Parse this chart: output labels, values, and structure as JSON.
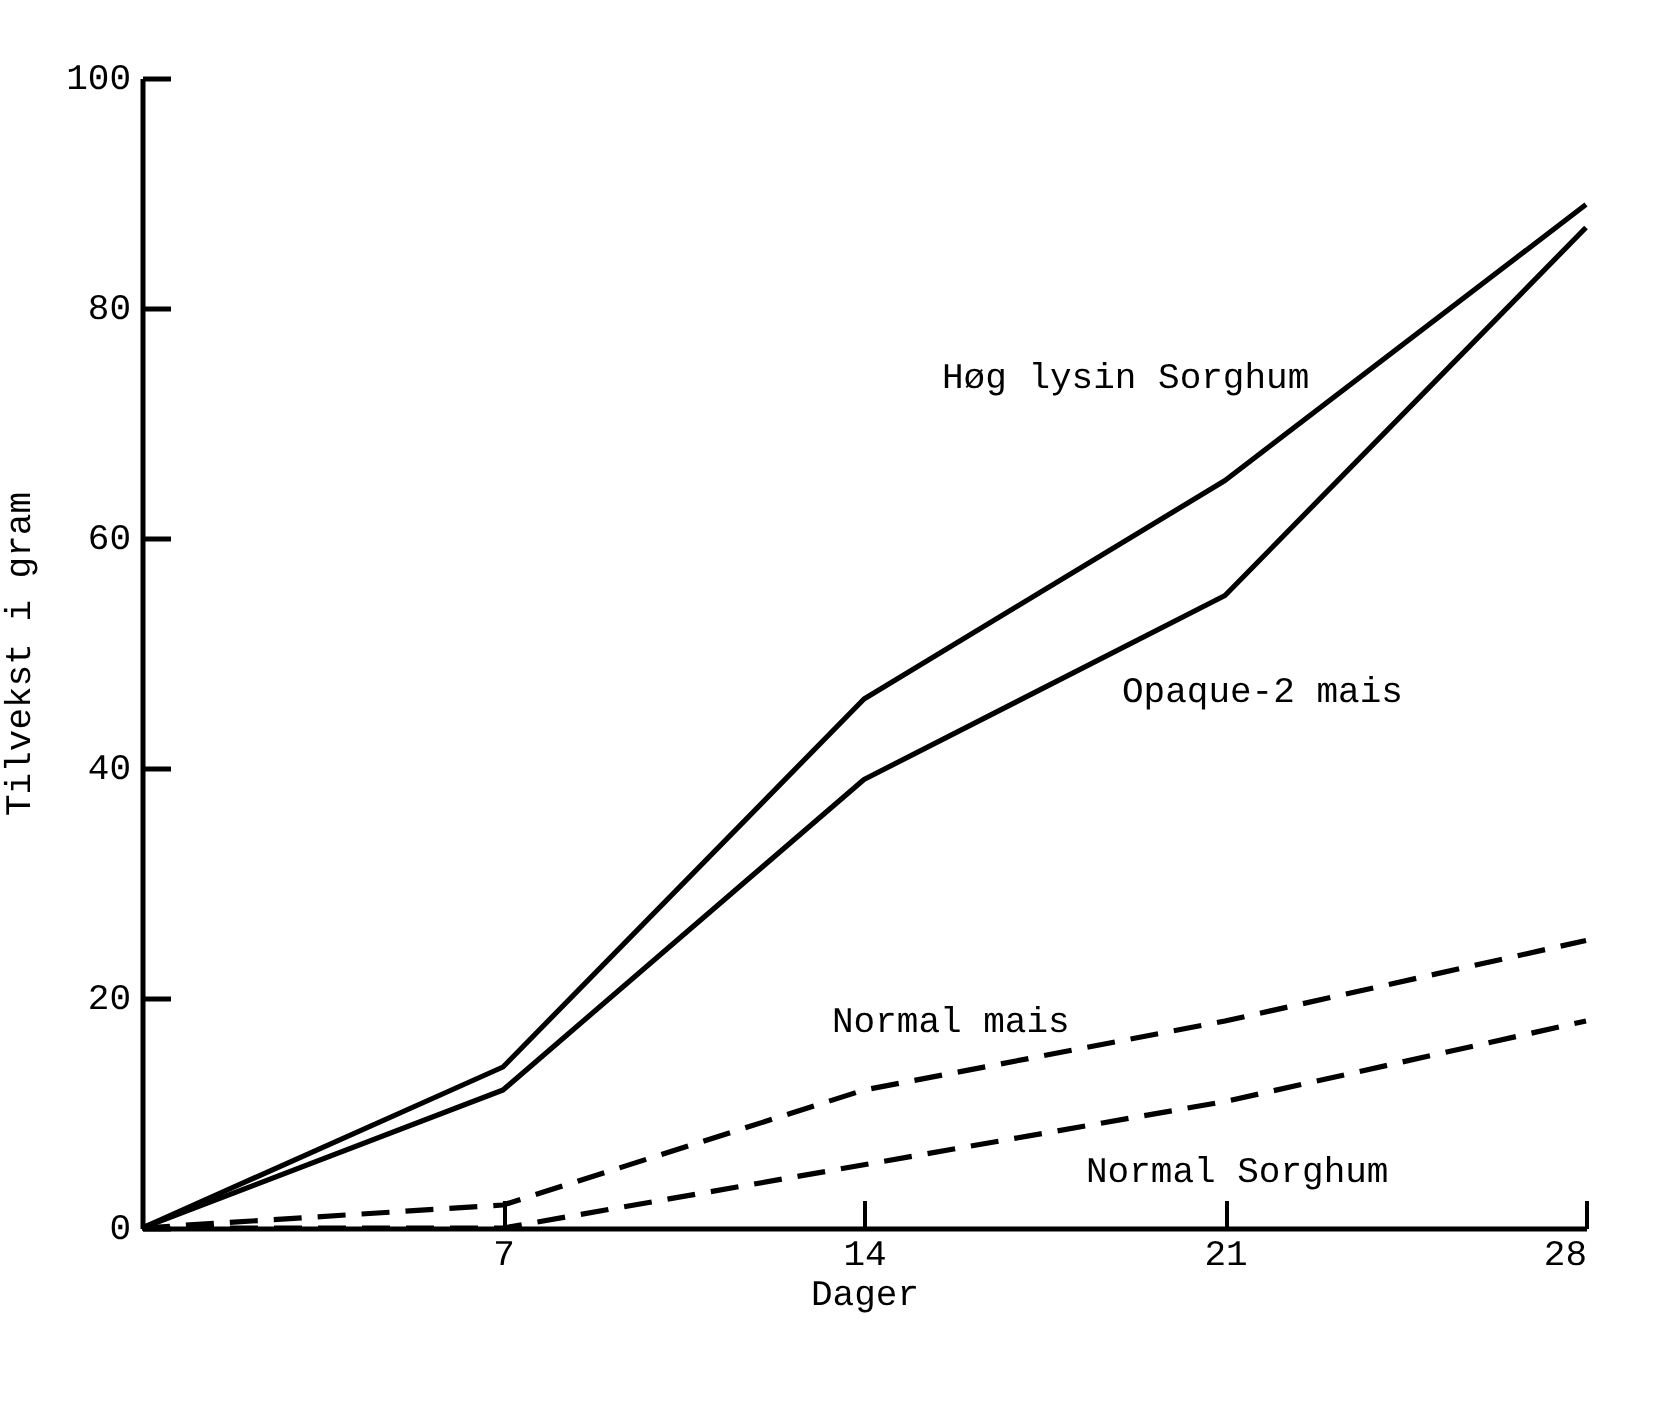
{
  "chart_data": {
    "type": "line",
    "xlabel": "Dager",
    "ylabel": "Tilvekst i gram",
    "x": [
      0,
      7,
      14,
      21,
      28
    ],
    "series": [
      {
        "name": "Høg lysin Sorghum",
        "color": "#000000",
        "line_style": "solid",
        "values": [
          0,
          14,
          46,
          65,
          89
        ]
      },
      {
        "name": "Opaque-2 mais",
        "color": "#000000",
        "line_style": "solid",
        "values": [
          0,
          12,
          39,
          55,
          87
        ]
      },
      {
        "name": "Normal mais",
        "color": "#000000",
        "line_style": "dashed",
        "values": [
          0,
          2,
          12,
          18,
          25
        ]
      },
      {
        "name": "Normal Sorghum",
        "color": "#000000",
        "line_style": "dashed",
        "values": [
          0,
          0,
          5.5,
          11,
          18
        ]
      }
    ],
    "xlim": [
      0,
      28
    ],
    "xticks": [
      7,
      14,
      21,
      28
    ],
    "ylim": [
      0,
      100
    ],
    "yticks": [
      0,
      20,
      40,
      60,
      80,
      100
    ],
    "grid": false,
    "legend": false,
    "marker": "none"
  }
}
